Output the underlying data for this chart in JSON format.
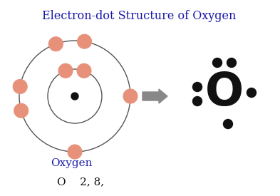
{
  "title": "Electron-dot Structure of Oxygen",
  "title_color": "#1a1aaa",
  "bg_color": "#ffffff",
  "nucleus_color": "#111111",
  "orbit_color": "#555555",
  "electron_color": "#e8917a",
  "electron_edge_color": "#cc6655",
  "lewis_dot_color": "#111111",
  "arrow_color": "#888888",
  "label_oxygen_color": "#1a1aaa",
  "label_config_color": "#111111",
  "label_oxygen": "Oxygen",
  "label_config": "O    2, 8,"
}
